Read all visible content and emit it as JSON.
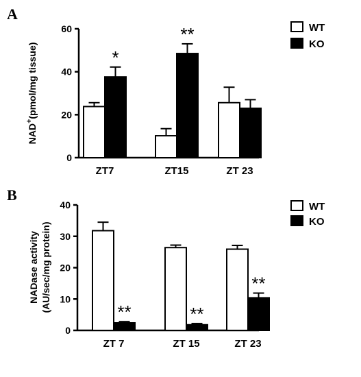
{
  "chart_data": [
    {
      "panel": "A",
      "type": "bar",
      "ylabel_main": "NAD",
      "ylabel_sup": "+",
      "ylabel_rest": "(pmol/mg tissue)",
      "ylim": [
        0,
        60
      ],
      "yticks": [
        0,
        20,
        40,
        60
      ],
      "categories": [
        "ZT7",
        "ZT15",
        "ZT 23"
      ],
      "series": [
        {
          "name": "WT",
          "color": "#ffffff",
          "values": [
            23.8,
            10.2,
            25.6
          ],
          "errors": [
            1.8,
            3.3,
            7.2
          ]
        },
        {
          "name": "KO",
          "color": "#000000",
          "values": [
            37.6,
            48.5,
            23.0
          ],
          "errors": [
            4.6,
            4.5,
            4.0
          ]
        }
      ],
      "annotations": [
        {
          "category": 0,
          "series": 1,
          "text": "*"
        },
        {
          "category": 1,
          "series": 1,
          "text": "**"
        }
      ],
      "legend": "top-right"
    },
    {
      "panel": "B",
      "type": "bar",
      "ylabel_lines": [
        "NADase activity",
        "(AU/sec/mg protein)"
      ],
      "ylim": [
        0,
        40
      ],
      "yticks": [
        0,
        10,
        20,
        30,
        40
      ],
      "categories": [
        "ZT 7",
        "ZT 15",
        "ZT 23"
      ],
      "series": [
        {
          "name": "WT",
          "color": "#ffffff",
          "values": [
            31.8,
            26.4,
            25.9
          ],
          "errors": [
            2.7,
            0.8,
            1.2
          ]
        },
        {
          "name": "KO",
          "color": "#000000",
          "values": [
            2.4,
            1.8,
            10.4
          ],
          "errors": [
            0.4,
            0.4,
            1.5
          ]
        }
      ],
      "annotations": [
        {
          "category": 0,
          "series": 1,
          "text": "**"
        },
        {
          "category": 1,
          "series": 1,
          "text": "**"
        },
        {
          "category": 2,
          "series": 1,
          "text": "**"
        }
      ],
      "legend": "top-right"
    }
  ]
}
